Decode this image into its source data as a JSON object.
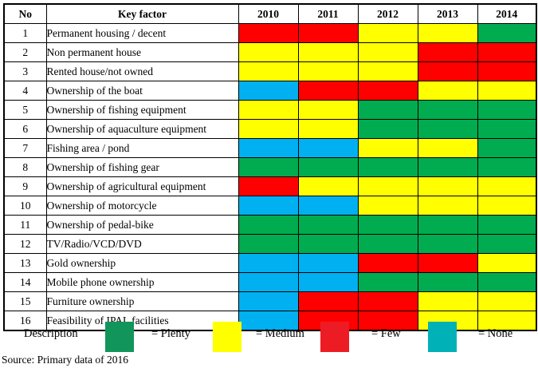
{
  "colors": {
    "cell": {
      "plenty": "#00AC4F",
      "medium": "#FFFF00",
      "few": "#FF0000",
      "none": "#00B0F0"
    },
    "legend_swatch": {
      "plenty": "#11955A",
      "medium": "#FFFF00",
      "few": "#ED1C24",
      "none": "#00B1B7"
    },
    "border": "#000000"
  },
  "legend": {
    "title": "Description",
    "items": [
      {
        "level": "plenty",
        "label": "= Plenty"
      },
      {
        "level": "medium",
        "label": "= Medium"
      },
      {
        "level": "few",
        "label": "= Few"
      },
      {
        "level": "none",
        "label": "= None"
      }
    ]
  },
  "source_note": "Source: Primary data of 2016",
  "chart_data": {
    "type": "heatmap",
    "title": "",
    "columns": [
      "No",
      "Key factor",
      "2010",
      "2011",
      "2012",
      "2013",
      "2014"
    ],
    "x": [
      "2010",
      "2011",
      "2012",
      "2013",
      "2014"
    ],
    "value_scale": {
      "plenty": "green",
      "medium": "yellow",
      "few": "red",
      "none": "cyan"
    },
    "legend_entries": [
      "= Plenty",
      "= Medium",
      "= Few",
      "= None"
    ],
    "source": "Source: Primary data of 2016",
    "rows": [
      {
        "no": "1",
        "label": "Permanent housing / decent",
        "levels": [
          "few",
          "few",
          "medium",
          "medium",
          "plenty"
        ]
      },
      {
        "no": "2",
        "label": "Non permanent house",
        "levels": [
          "medium",
          "medium",
          "medium",
          "few",
          "few"
        ]
      },
      {
        "no": "3",
        "label": "Rented house/not owned",
        "levels": [
          "medium",
          "medium",
          "medium",
          "few",
          "few"
        ]
      },
      {
        "no": "4",
        "label": "Ownership of the boat",
        "levels": [
          "none",
          "few",
          "few",
          "medium",
          "medium"
        ]
      },
      {
        "no": "5",
        "label": "Ownership of fishing equipment",
        "levels": [
          "medium",
          "medium",
          "plenty",
          "plenty",
          "plenty"
        ]
      },
      {
        "no": "6",
        "label": "Ownership of aquaculture equipment",
        "levels": [
          "medium",
          "medium",
          "plenty",
          "plenty",
          "plenty"
        ]
      },
      {
        "no": "7",
        "label": "Fishing area / pond",
        "levels": [
          "none",
          "none",
          "medium",
          "medium",
          "plenty"
        ]
      },
      {
        "no": "8",
        "label": "Ownership of fishing gear",
        "levels": [
          "plenty",
          "plenty",
          "plenty",
          "plenty",
          "plenty"
        ]
      },
      {
        "no": "9",
        "label": "Ownership of agricultural equipment",
        "levels": [
          "few",
          "medium",
          "medium",
          "medium",
          "medium"
        ]
      },
      {
        "no": "10",
        "label": "Ownership of motorcycle",
        "levels": [
          "none",
          "none",
          "medium",
          "medium",
          "medium"
        ]
      },
      {
        "no": "11",
        "label": "Ownership of pedal-bike",
        "levels": [
          "plenty",
          "plenty",
          "plenty",
          "plenty",
          "plenty"
        ]
      },
      {
        "no": "12",
        "label": "TV/Radio/VCD/DVD",
        "levels": [
          "plenty",
          "plenty",
          "plenty",
          "plenty",
          "plenty"
        ]
      },
      {
        "no": "13",
        "label": "Gold ownership",
        "levels": [
          "none",
          "none",
          "few",
          "few",
          "medium"
        ]
      },
      {
        "no": "14",
        "label": "Mobile phone ownership",
        "levels": [
          "none",
          "none",
          "plenty",
          "plenty",
          "plenty"
        ]
      },
      {
        "no": "15",
        "label": "Furniture ownership",
        "levels": [
          "none",
          "few",
          "few",
          "medium",
          "medium"
        ]
      },
      {
        "no": "16",
        "label": "Feasibility of IPAL facilities",
        "levels": [
          "none",
          "few",
          "few",
          "medium",
          "medium"
        ]
      }
    ]
  }
}
